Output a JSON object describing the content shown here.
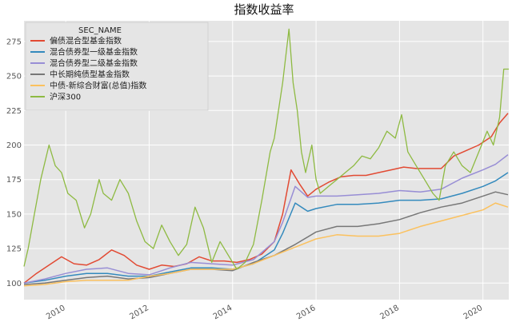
{
  "chart_data": {
    "type": "line",
    "title": "指数收益率",
    "xlim": [
      2009.0,
      2020.62
    ],
    "ylim": [
      88,
      290
    ],
    "x_ticks": [
      2010,
      2012,
      2014,
      2016,
      2018,
      2020
    ],
    "y_ticks": [
      100,
      125,
      150,
      175,
      200,
      225,
      250,
      275
    ],
    "grid": true,
    "legend_title": "SEC_NAME",
    "legend_position": "top-left",
    "series": [
      {
        "name": "偏债混合型基金指数",
        "color": "#E24A33",
        "x": [
          2009.0,
          2009.3,
          2009.6,
          2009.9,
          2010.2,
          2010.5,
          2010.8,
          2011.1,
          2011.4,
          2011.7,
          2012.0,
          2012.3,
          2012.6,
          2012.9,
          2013.2,
          2013.5,
          2013.8,
          2014.1,
          2014.4,
          2014.7,
          2015.0,
          2015.2,
          2015.4,
          2015.6,
          2015.8,
          2016.0,
          2016.3,
          2016.6,
          2016.9,
          2017.2,
          2017.5,
          2017.8,
          2018.1,
          2018.4,
          2018.7,
          2019.0,
          2019.3,
          2019.6,
          2019.9,
          2020.2,
          2020.4,
          2020.6
        ],
        "y": [
          100,
          107,
          113,
          119,
          114,
          113,
          117,
          124,
          120,
          113,
          110,
          113,
          112,
          114,
          119,
          116,
          116,
          115,
          117,
          121,
          130,
          150,
          182,
          172,
          163,
          168,
          173,
          177,
          178,
          178,
          180,
          182,
          184,
          183,
          183,
          183,
          192,
          196,
          200,
          206,
          216,
          223
        ]
      },
      {
        "name": "混合债券型一级基金指数",
        "color": "#348ABD",
        "x": [
          2009.0,
          2009.5,
          2010.0,
          2010.5,
          2011.0,
          2011.5,
          2012.0,
          2012.5,
          2013.0,
          2013.5,
          2014.0,
          2014.5,
          2015.0,
          2015.2,
          2015.5,
          2015.8,
          2016.0,
          2016.5,
          2017.0,
          2017.5,
          2018.0,
          2018.5,
          2019.0,
          2019.5,
          2020.0,
          2020.3,
          2020.6
        ],
        "y": [
          100,
          102,
          105,
          107,
          107,
          105,
          105,
          108,
          111,
          111,
          110,
          114,
          124,
          136,
          158,
          152,
          154,
          157,
          157,
          158,
          160,
          160,
          161,
          165,
          170,
          174,
          180
        ]
      },
      {
        "name": "混合债券型二级基金指数",
        "color": "#988ED5",
        "x": [
          2009.0,
          2009.5,
          2010.0,
          2010.5,
          2011.0,
          2011.5,
          2012.0,
          2012.5,
          2013.0,
          2013.5,
          2014.0,
          2014.5,
          2015.0,
          2015.2,
          2015.5,
          2015.8,
          2016.0,
          2016.5,
          2017.0,
          2017.5,
          2018.0,
          2018.5,
          2019.0,
          2019.5,
          2020.0,
          2020.3,
          2020.6
        ],
        "y": [
          100,
          103,
          107,
          110,
          111,
          107,
          106,
          111,
          115,
          114,
          113,
          117,
          130,
          144,
          170,
          162,
          163,
          163,
          164,
          165,
          167,
          166,
          168,
          176,
          182,
          186,
          193
        ]
      },
      {
        "name": "中长期纯债型基金指数",
        "color": "#777777",
        "x": [
          2009.0,
          2009.5,
          2010.0,
          2010.5,
          2011.0,
          2011.5,
          2012.0,
          2012.5,
          2013.0,
          2013.5,
          2014.0,
          2014.5,
          2015.0,
          2015.5,
          2016.0,
          2016.5,
          2017.0,
          2017.5,
          2018.0,
          2018.5,
          2019.0,
          2019.5,
          2020.0,
          2020.3,
          2020.6
        ],
        "y": [
          99,
          100,
          102,
          104,
          105,
          103,
          104,
          107,
          110,
          110,
          109,
          115,
          120,
          128,
          137,
          141,
          141,
          143,
          146,
          151,
          155,
          158,
          163,
          166,
          164
        ]
      },
      {
        "name": "中债-新综合财富(总值)指数",
        "color": "#FBC15E",
        "x": [
          2009.0,
          2009.5,
          2010.0,
          2010.5,
          2011.0,
          2011.5,
          2012.0,
          2012.5,
          2013.0,
          2013.5,
          2014.0,
          2014.5,
          2015.0,
          2015.5,
          2016.0,
          2016.5,
          2017.0,
          2017.5,
          2018.0,
          2018.5,
          2019.0,
          2019.5,
          2020.0,
          2020.3,
          2020.6
        ],
        "y": [
          98,
          99,
          101,
          102,
          102,
          102,
          105,
          107,
          110,
          110,
          110,
          114,
          120,
          126,
          132,
          135,
          134,
          134,
          136,
          141,
          145,
          149,
          153,
          158,
          155
        ]
      },
      {
        "name": "沪深300",
        "color": "#8EBA42",
        "x": [
          2009.0,
          2009.1,
          2009.25,
          2009.4,
          2009.6,
          2009.75,
          2009.9,
          2010.05,
          2010.25,
          2010.45,
          2010.6,
          2010.8,
          2010.9,
          2011.1,
          2011.3,
          2011.5,
          2011.7,
          2011.9,
          2012.1,
          2012.3,
          2012.5,
          2012.7,
          2012.9,
          2013.1,
          2013.3,
          2013.5,
          2013.7,
          2013.9,
          2014.1,
          2014.3,
          2014.5,
          2014.7,
          2014.9,
          2015.0,
          2015.2,
          2015.35,
          2015.45,
          2015.55,
          2015.65,
          2015.75,
          2015.9,
          2016.0,
          2016.1,
          2016.3,
          2016.5,
          2016.7,
          2016.9,
          2017.1,
          2017.3,
          2017.5,
          2017.7,
          2017.9,
          2018.05,
          2018.2,
          2018.4,
          2018.6,
          2018.8,
          2018.95,
          2019.1,
          2019.3,
          2019.5,
          2019.7,
          2019.9,
          2020.1,
          2020.25,
          2020.4,
          2020.5,
          2020.62
        ],
        "y": [
          112,
          125,
          150,
          175,
          200,
          185,
          180,
          165,
          160,
          140,
          150,
          175,
          165,
          160,
          175,
          165,
          145,
          130,
          125,
          142,
          130,
          120,
          128,
          155,
          140,
          115,
          130,
          120,
          110,
          115,
          128,
          160,
          195,
          205,
          245,
          284,
          245,
          225,
          195,
          180,
          200,
          175,
          165,
          170,
          175,
          180,
          185,
          192,
          190,
          198,
          210,
          205,
          222,
          195,
          185,
          175,
          165,
          160,
          185,
          195,
          185,
          180,
          195,
          210,
          200,
          220,
          255,
          255
        ]
      }
    ]
  }
}
